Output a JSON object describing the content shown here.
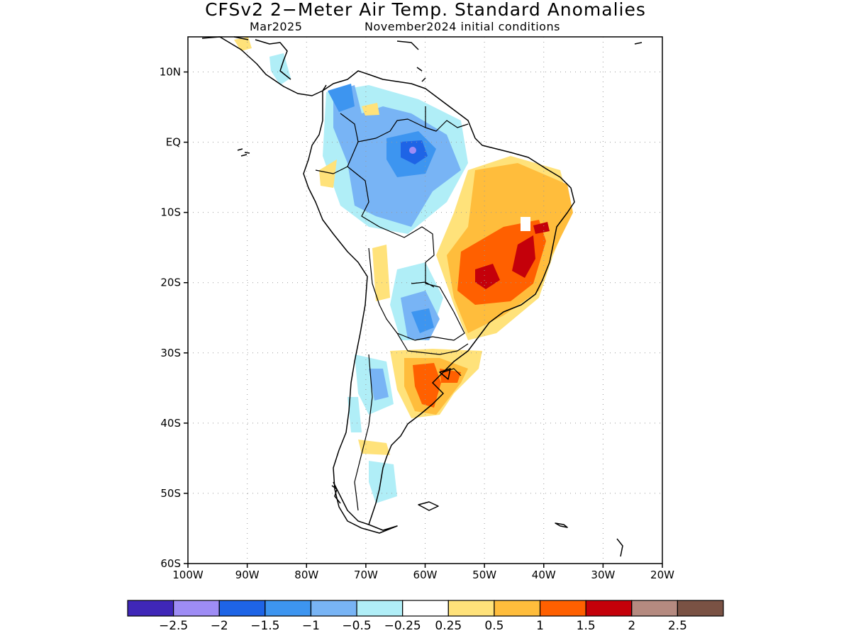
{
  "title": "CFSv2 2−Meter Air Temp. Standard Anomalies",
  "subtitle_left": "Mar2025",
  "subtitle_right": "November2024 initial conditions",
  "map": {
    "lon_range": [
      -100,
      -20
    ],
    "lat_range": [
      -60,
      15
    ],
    "lat_ticks": [
      {
        "value": 10,
        "label": "10N"
      },
      {
        "value": 0,
        "label": "EQ"
      },
      {
        "value": -10,
        "label": "10S"
      },
      {
        "value": -20,
        "label": "20S"
      },
      {
        "value": -30,
        "label": "30S"
      },
      {
        "value": -40,
        "label": "40S"
      },
      {
        "value": -50,
        "label": "50S"
      },
      {
        "value": -60,
        "label": "60S"
      }
    ],
    "lon_ticks": [
      {
        "value": -100,
        "label": "100W"
      },
      {
        "value": -90,
        "label": "90W"
      },
      {
        "value": -80,
        "label": "80W"
      },
      {
        "value": -70,
        "label": "70W"
      },
      {
        "value": -60,
        "label": "60W"
      },
      {
        "value": -50,
        "label": "50W"
      },
      {
        "value": -40,
        "label": "40W"
      },
      {
        "value": -30,
        "label": "30W"
      },
      {
        "value": -20,
        "label": "20W"
      }
    ],
    "grid": "dotted"
  },
  "colorbar": {
    "colors": [
      "#3f27b8",
      "#9e8cf5",
      "#1e64e6",
      "#3d95f0",
      "#78b4f5",
      "#b0eef7",
      "#ffffff",
      "#ffe27a",
      "#ffbd3c",
      "#ff6000",
      "#c4000a",
      "#b58a80",
      "#7a5244"
    ],
    "labels": [
      "−2.5",
      "−2",
      "−1.5",
      "−1",
      "−0.5",
      "−0.25",
      "0.25",
      "0.5",
      "1",
      "1.5",
      "2",
      "2.5"
    ]
  }
}
